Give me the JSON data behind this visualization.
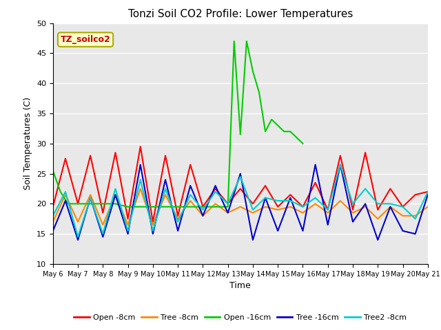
{
  "title": "Tonzi Soil CO2 Profile: Lower Temperatures",
  "xlabel": "Time",
  "ylabel": "Soil Temperatures (C)",
  "ylim": [
    10,
    50
  ],
  "xlim": [
    0,
    15
  ],
  "background_color": "#e8e8e8",
  "legend_label": "TZ_soilco2",
  "series": {
    "Open -8cm": {
      "color": "#ff0000",
      "x": [
        0,
        0.5,
        1.0,
        1.5,
        2.0,
        2.5,
        3.0,
        3.5,
        4.0,
        4.5,
        5.0,
        5.5,
        6.0,
        6.5,
        7.0,
        7.5,
        8.0,
        8.5,
        9.0,
        9.5,
        10.0,
        10.5,
        11.0,
        11.5,
        12.0,
        12.5,
        13.0,
        13.5,
        14.0,
        14.5,
        15.0
      ],
      "y": [
        19.5,
        27.5,
        20.0,
        28.0,
        18.5,
        28.5,
        17.5,
        29.5,
        17.0,
        28.0,
        18.0,
        26.5,
        19.5,
        22.5,
        20.0,
        22.5,
        20.0,
        23.0,
        19.5,
        21.5,
        19.5,
        23.5,
        19.0,
        28.0,
        19.0,
        28.5,
        19.0,
        22.5,
        19.5,
        21.5,
        22.0
      ]
    },
    "Tree -8cm": {
      "color": "#ff8800",
      "x": [
        0,
        0.5,
        1.0,
        1.5,
        2.0,
        2.5,
        3.0,
        3.5,
        4.0,
        4.5,
        5.0,
        5.5,
        6.0,
        6.5,
        7.0,
        7.5,
        8.0,
        8.5,
        9.0,
        9.5,
        10.0,
        10.5,
        11.0,
        11.5,
        12.0,
        12.5,
        13.0,
        13.5,
        14.0,
        14.5,
        15.0
      ],
      "y": [
        17.0,
        21.5,
        17.0,
        21.5,
        16.5,
        21.5,
        16.5,
        22.5,
        16.5,
        21.5,
        17.5,
        20.5,
        18.0,
        20.0,
        18.5,
        19.5,
        18.5,
        19.5,
        19.0,
        19.5,
        18.5,
        20.0,
        18.5,
        20.5,
        18.5,
        19.5,
        17.5,
        19.5,
        18.0,
        18.0,
        19.5
      ]
    },
    "Open -16cm": {
      "color": "#00cc00",
      "x": [
        0,
        0.3,
        0.6,
        1.0,
        1.5,
        2.0,
        2.5,
        3.0,
        3.5,
        4.0,
        4.5,
        5.0,
        5.5,
        6.0,
        6.5,
        7.0,
        7.25,
        7.5,
        7.75,
        8.0,
        8.25,
        8.5,
        8.75,
        9.0,
        9.25,
        9.5,
        9.75,
        10.0
      ],
      "y": [
        25.5,
        22.0,
        20.0,
        20.0,
        20.0,
        20.0,
        20.0,
        19.5,
        19.5,
        19.5,
        19.5,
        19.5,
        19.5,
        19.5,
        19.5,
        19.5,
        47.0,
        31.5,
        47.0,
        42.0,
        38.5,
        32.0,
        34.0,
        33.0,
        32.0,
        32.0,
        31.0,
        30.0
      ]
    },
    "Tree -16cm": {
      "color": "#0000cc",
      "x": [
        0,
        0.5,
        1.0,
        1.5,
        2.0,
        2.5,
        3.0,
        3.5,
        4.0,
        4.5,
        5.0,
        5.5,
        6.0,
        6.5,
        7.0,
        7.5,
        8.0,
        8.5,
        9.0,
        9.5,
        10.0,
        10.5,
        11.0,
        11.5,
        12.0,
        12.5,
        13.0,
        13.5,
        14.0,
        14.5,
        15.0
      ],
      "y": [
        15.5,
        20.5,
        14.0,
        21.0,
        14.5,
        21.5,
        15.0,
        26.5,
        15.0,
        24.0,
        15.5,
        23.0,
        18.0,
        23.0,
        18.5,
        25.0,
        14.0,
        21.0,
        15.5,
        21.0,
        15.5,
        26.5,
        16.5,
        26.5,
        17.0,
        20.0,
        14.0,
        19.5,
        15.5,
        15.0,
        21.5
      ]
    },
    "Tree2 -8cm": {
      "color": "#00cccc",
      "x": [
        0,
        0.5,
        1.0,
        1.5,
        2.0,
        2.5,
        3.0,
        3.5,
        4.0,
        4.5,
        5.0,
        5.5,
        6.0,
        6.5,
        7.0,
        7.5,
        8.0,
        8.5,
        9.0,
        9.5,
        10.0,
        10.5,
        11.0,
        11.5,
        12.0,
        12.5,
        13.0,
        13.5,
        14.0,
        14.5,
        15.0
      ],
      "y": [
        18.0,
        22.0,
        14.5,
        21.0,
        15.0,
        22.5,
        15.5,
        24.0,
        15.5,
        22.5,
        17.0,
        21.5,
        19.0,
        22.0,
        20.0,
        24.5,
        19.0,
        21.0,
        20.5,
        20.5,
        19.5,
        21.0,
        19.0,
        26.5,
        20.0,
        22.5,
        20.0,
        20.0,
        19.5,
        17.5,
        22.0
      ]
    }
  },
  "xtick_labels": [
    "May 6",
    "May 7",
    "May 8",
    "May 9",
    "May 10",
    "May 11",
    "May 12",
    "May 13",
    "May 14",
    "May 15",
    "May 16",
    "May 17",
    "May 18",
    "May 19",
    "May 20",
    "May 21"
  ],
  "xtick_positions": [
    0,
    1,
    2,
    3,
    4,
    5,
    6,
    7,
    8,
    9,
    10,
    11,
    12,
    13,
    14,
    15
  ],
  "ytick_positions": [
    10,
    15,
    20,
    25,
    30,
    35,
    40,
    45,
    50
  ]
}
